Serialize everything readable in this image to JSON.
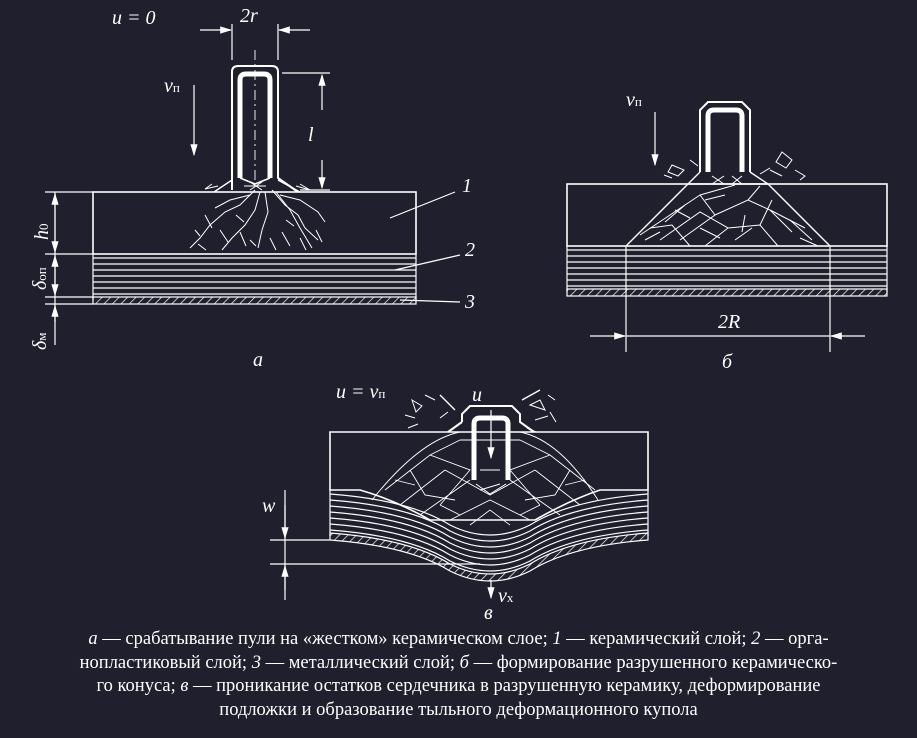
{
  "labels": {
    "a_u0": "u = 0",
    "a_2r": "2r",
    "a_vp_v": "v",
    "a_vp_sub": "п",
    "a_l": "l",
    "a_h": "h",
    "a_h_sub": "0",
    "a_dop": "δ",
    "a_dop_sub": "оп",
    "a_dm": "δ",
    "a_dm_sub": "м",
    "n1": "1",
    "n2": "2",
    "n3": "3",
    "a_letter": "а",
    "b_vp_v": "v",
    "b_vp_sub": "п",
    "b_2R": "2R",
    "b_letter": "б",
    "c_u_eq": "u = v",
    "c_u_eq_sub": "п",
    "c_u": "u",
    "c_w": "w",
    "c_vx_v": "v",
    "c_vx_sub": "x",
    "c_letter": "в"
  },
  "caption": {
    "line1_p1": "а",
    "line1_p2": " — срабатывание пули на «жестком» керамическом слое; ",
    "line1_p3": "1",
    "line1_p4": " — керамический слой; ",
    "line1_p5": "2",
    "line1_p6": " — орга-",
    "line2_p1": "нопластиковый слой; ",
    "line2_p2": "3",
    "line2_p3": " — металлический слой; ",
    "line2_p4": "б",
    "line2_p5": " — формирование разрушенного керамическо-",
    "line3_p1": "го конуса; ",
    "line3_p2": "в",
    "line3_p3": " — проникание остатков сердечника в разрушенную керамику, деформирование",
    "line4": "подложки и образование тыльного деформационного купола"
  }
}
